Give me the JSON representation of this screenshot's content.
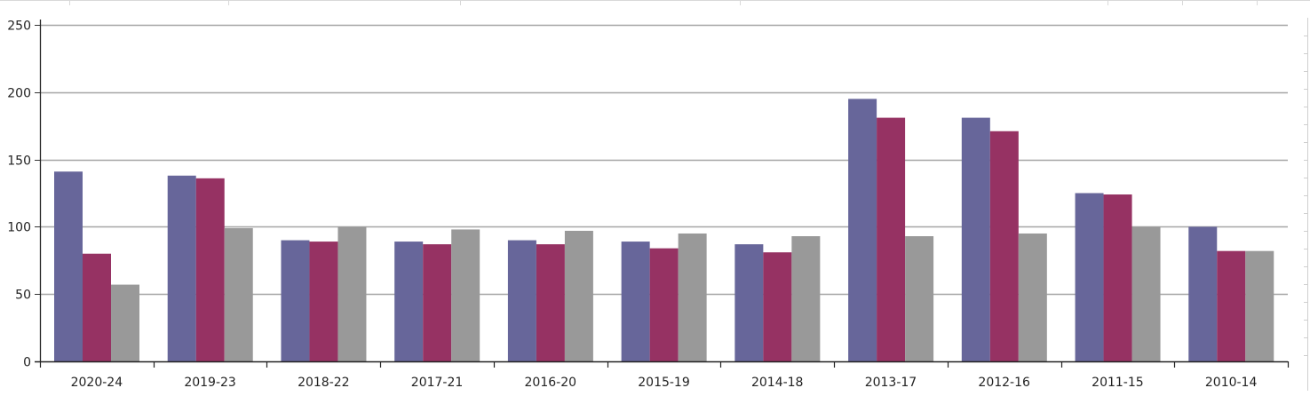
{
  "chart_data": {
    "type": "bar",
    "categories": [
      "2020-24",
      "2019-23",
      "2018-22",
      "2017-21",
      "2016-20",
      "2015-19",
      "2014-18",
      "2013-17",
      "2012-16",
      "2011-15",
      "2010-14"
    ],
    "series": [
      {
        "values": [
          141,
          138,
          90,
          89,
          90,
          89,
          87,
          195,
          181,
          125,
          100
        ],
        "color": "#67669a"
      },
      {
        "values": [
          80,
          136,
          89,
          87,
          87,
          84,
          81,
          181,
          171,
          124,
          82
        ],
        "color": "#963263"
      },
      {
        "values": [
          57,
          99,
          100,
          98,
          97,
          95,
          93,
          93,
          95,
          100,
          82
        ],
        "color": "#999999"
      }
    ],
    "yticks": [
      0,
      50,
      100,
      150,
      200,
      250
    ],
    "ylim": [
      0,
      250
    ],
    "grid": true
  }
}
